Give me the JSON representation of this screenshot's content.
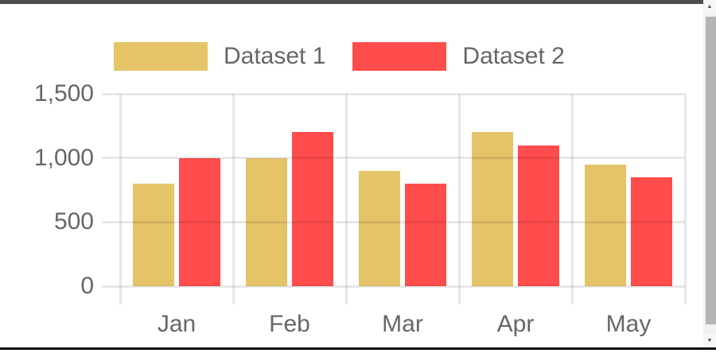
{
  "scrollbar": {
    "up_icon": "▲",
    "down_icon": "▼"
  },
  "chart_data": {
    "type": "bar",
    "title": "",
    "categories": [
      "Jan",
      "Feb",
      "Mar",
      "Apr",
      "May"
    ],
    "series": [
      {
        "name": "Dataset 1",
        "color": "#E5C369",
        "values": [
          800,
          1000,
          900,
          1200,
          950
        ]
      },
      {
        "name": "Dataset 2",
        "color": "#FF4C4C",
        "values": [
          1000,
          1200,
          800,
          1100,
          850
        ]
      }
    ],
    "xlabel": "",
    "ylabel": "",
    "ylim": [
      0,
      1500
    ],
    "y_ticks": [
      {
        "value": 0,
        "label": "0"
      },
      {
        "value": 500,
        "label": "500"
      },
      {
        "value": 1000,
        "label": "1,000"
      },
      {
        "value": 1500,
        "label": "1,500"
      }
    ],
    "grid": true,
    "legend_position": "top",
    "axis_text_color": "#666666",
    "gridline_color": "rgba(0,0,0,0.09)"
  }
}
